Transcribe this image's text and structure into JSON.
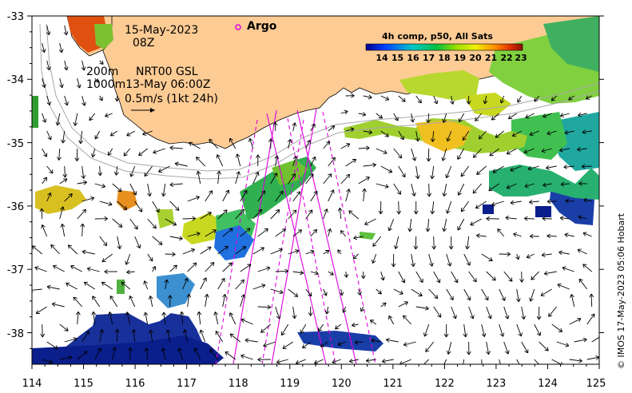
{
  "map": {
    "date": "15-May-2023",
    "time": "08Z",
    "depth_200": "200m",
    "product": "NRT00 GSL",
    "depth_1000_time": "1000m13-May 06:00Z",
    "scale_label": "0.5m/s (1kt 24h)",
    "argo_label": "Argo",
    "colorbar_title": "4h comp, p50, All Sats",
    "colorbar_ticks": [
      "14",
      "15",
      "16",
      "17",
      "18",
      "19",
      "20",
      "21",
      "22",
      "23"
    ],
    "credit": "© IMOS 17-May-2023 05:06 Hobart",
    "lon_ticks": [
      "114",
      "115",
      "116",
      "117",
      "118",
      "119",
      "120",
      "121",
      "122",
      "123",
      "124",
      "125"
    ],
    "lat_ticks": [
      "-33",
      "-34",
      "-35",
      "-36",
      "-37",
      "-38"
    ],
    "lon_range": [
      114,
      125
    ],
    "lat_range": [
      -38.5,
      -33
    ],
    "colors": {
      "land": "#fdcb94",
      "track": "#e000e0",
      "sst_cold": "#0a1e8c",
      "sst_warm": "#8c1e00"
    }
  }
}
